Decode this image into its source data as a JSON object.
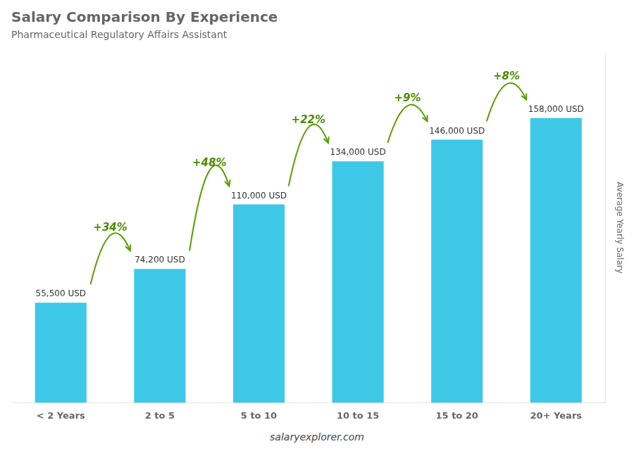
{
  "chart_data": {
    "type": "bar",
    "title": "Salary Comparison By Experience",
    "subtitle": "Pharmaceutical Regulatory Affairs Assistant",
    "categories": [
      "< 2 Years",
      "2 to 5",
      "5 to 10",
      "10 to 15",
      "15 to 20",
      "20+ Years"
    ],
    "values": [
      55500,
      74200,
      110000,
      134000,
      146000,
      158000
    ],
    "value_labels": [
      "55,500 USD",
      "74,200 USD",
      "110,000 USD",
      "134,000 USD",
      "146,000 USD",
      "158,000 USD"
    ],
    "data_labels": true,
    "color": "#3ec8e8",
    "ylabel": "Average Yearly Salary",
    "ylim": [
      0,
      194250
    ],
    "tick_labels": "x",
    "grid": false,
    "annotations": [
      "+34%",
      "+48%",
      "+22%",
      "+9%",
      "+8%"
    ],
    "footer": "salaryexplorer.com"
  }
}
